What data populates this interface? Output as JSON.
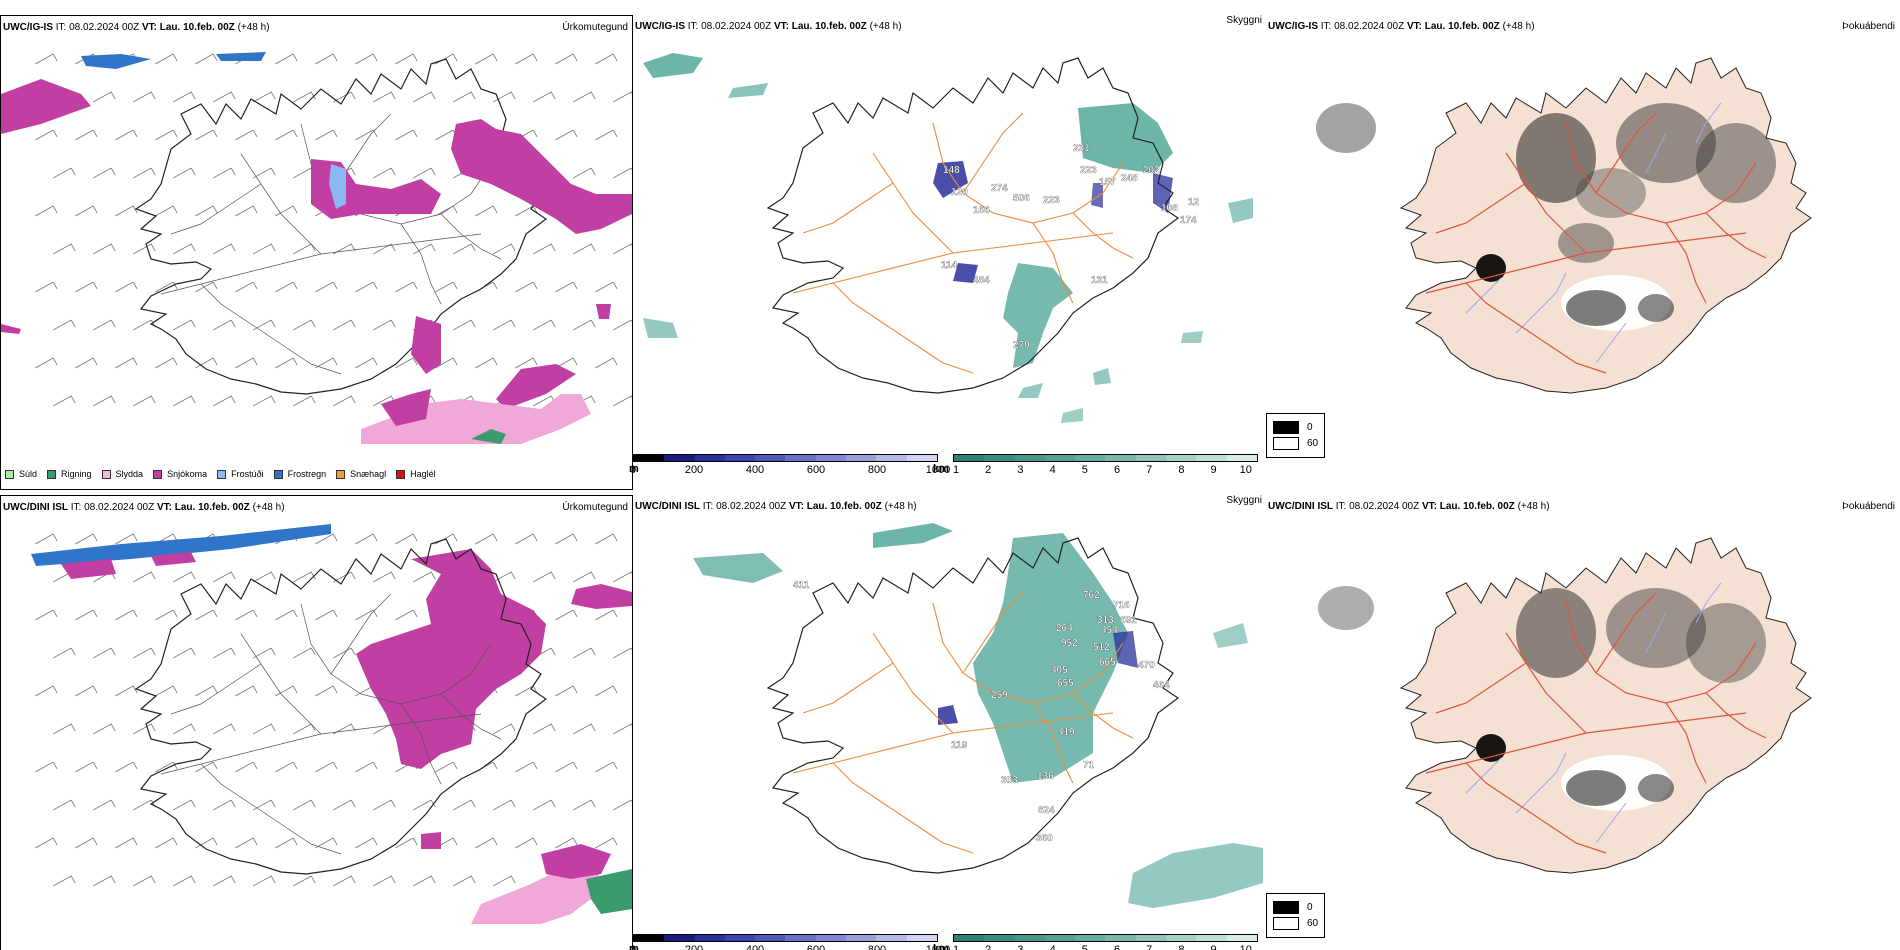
{
  "colors": {
    "sea": "#ffffff",
    "land_precip": "#ffffff",
    "land_fog": "#f4e1d3",
    "roads": "#f08a3c",
    "roads_fog": "#e0553a",
    "rivers": "#9aa8f0",
    "coast": "#222222",
    "snow": "#c13fa3",
    "sleet": "#f0a8d8",
    "freezing_rain": "#2f75c9",
    "freezing_drizzle": "#8ab8f0",
    "cloud_teal": "#3c9b8c",
    "low_vis_blue": "#2a2f9a"
  },
  "row1": {
    "precip": {
      "model": "UWC/IG-IS",
      "it": "IT: 08.02.2024 00Z",
      "vt_label": "VT:",
      "vt": "Lau. 10.feb. 00Z",
      "lead": "(+48 h)",
      "title": "Úrkomutegund"
    },
    "vis": {
      "model": "UWC/IG-IS",
      "it": "IT: 08.02.2024 00Z",
      "vt_label": "VT:",
      "vt": "Lau. 10.feb. 00Z",
      "lead": "(+48 h)",
      "title": "Skyggni",
      "labels": [
        "148",
        "120",
        "166",
        "274",
        "506",
        "223",
        "231",
        "223",
        "157",
        "248",
        "202",
        "108",
        "174",
        "114",
        "484",
        "131",
        "270",
        "12"
      ]
    },
    "fog": {
      "model": "UWC/IG-IS",
      "it": "IT: 08.02.2024 00Z",
      "vt_label": "VT:",
      "vt": "Lau. 10.feb. 00Z",
      "lead": "(+48 h)",
      "title": "Þokuábendi"
    }
  },
  "row2": {
    "precip": {
      "model": "UWC/DINI ISL",
      "it": "IT: 08.02.2024 00Z",
      "vt_label": "VT:",
      "vt": "Lau. 10.feb. 00Z",
      "lead": "(+48 h)",
      "title": "Úrkomutegund"
    },
    "vis": {
      "model": "UWC/DINI ISL",
      "it": "IT: 08.02.2024 00Z",
      "vt_label": "VT:",
      "vt": "Lau. 10.feb. 00Z",
      "lead": "(+48 h)",
      "title": "Skyggni",
      "labels": [
        "411",
        "762",
        "716",
        "691",
        "313",
        "454",
        "264",
        "952",
        "512",
        "665",
        "470",
        "464",
        "405",
        "655",
        "259",
        "419",
        "119",
        "71",
        "303",
        "136",
        "824",
        "360"
      ]
    },
    "fog": {
      "model": "UWC/DINI ISL",
      "it": "IT: 08.02.2024 00Z",
      "vt_label": "VT:",
      "vt": "Lau. 10.feb. 00Z",
      "lead": "(+48 h)",
      "title": "Þokuábendi"
    }
  },
  "ptype_legend": [
    {
      "label": "Súld",
      "color": "#a6f0a0"
    },
    {
      "label": "Rigning",
      "color": "#3c9b6c"
    },
    {
      "label": "Slydda",
      "color": "#f0b8e0"
    },
    {
      "label": "Snjókoma",
      "color": "#c13fa3"
    },
    {
      "label": "Frostúði",
      "color": "#8ab8f0"
    },
    {
      "label": "Frostregn",
      "color": "#2f75c9"
    },
    {
      "label": "Snæhagl",
      "color": "#f0a030"
    },
    {
      "label": "Haglél",
      "color": "#e01010"
    }
  ],
  "vis_m_scale": {
    "unit": "m",
    "ticks": [
      "0",
      "200",
      "400",
      "600",
      "800",
      "1000"
    ],
    "colors": [
      "#000000",
      "#1a1a7a",
      "#2a2f9a",
      "#3d44ad",
      "#5058b8",
      "#6a70c4",
      "#8188cf",
      "#9aa0da",
      "#b5b9e6",
      "#d0d3f0"
    ]
  },
  "vis_km_scale": {
    "unit": "km",
    "ticks": [
      "1",
      "2",
      "3",
      "4",
      "5",
      "6",
      "7",
      "8",
      "9",
      "10"
    ],
    "colors": [
      "#2e7f74",
      "#3a8c80",
      "#47978b",
      "#56a196",
      "#68ada2",
      "#7ab8ad",
      "#8fc4bb",
      "#a6d1c9",
      "#bfded8",
      "#daece8"
    ]
  },
  "fog_legend": [
    {
      "label": "0",
      "color": "#000000"
    },
    {
      "label": "60",
      "color": "#ffffff"
    }
  ]
}
